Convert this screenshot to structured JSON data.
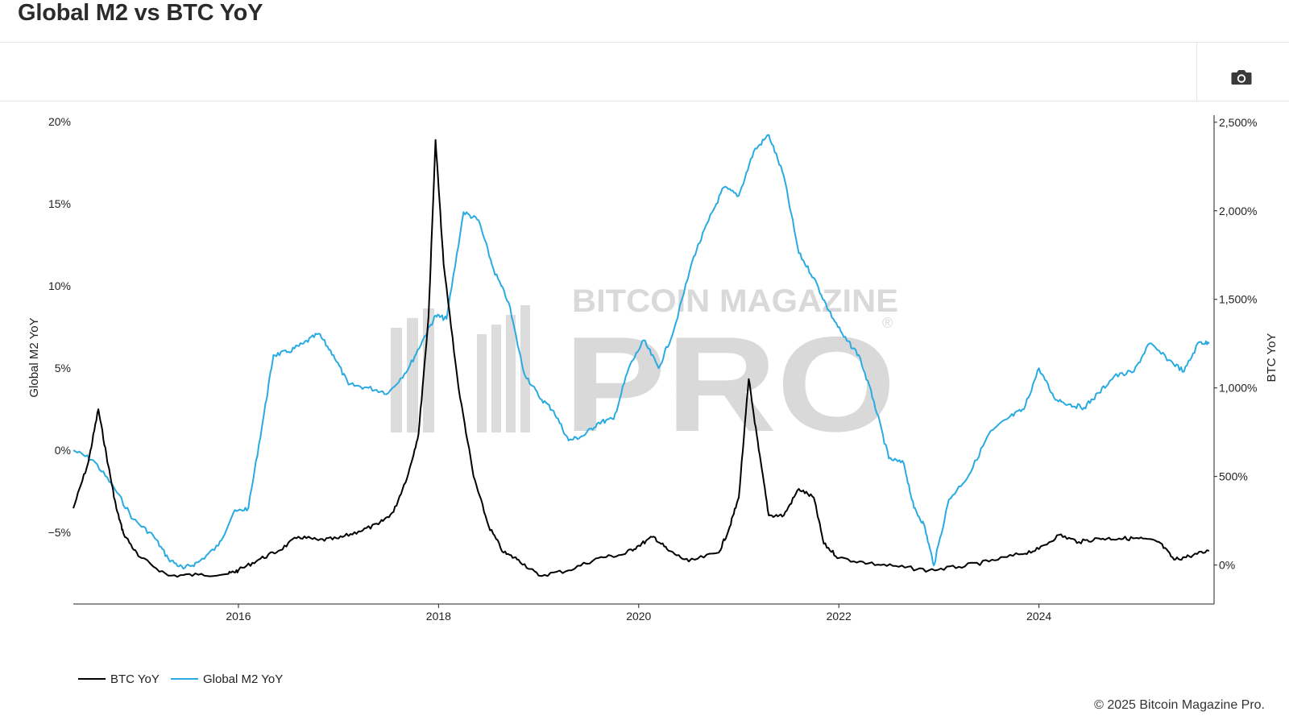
{
  "header": {
    "title": "Global M2 vs BTC YoY"
  },
  "toolbar": {
    "screenshot_icon": "camera-icon"
  },
  "watermark": {
    "line1": "BITCOIN MAGAZINE",
    "line2": "PRO",
    "mark": "®"
  },
  "footer": {
    "copyright": "© 2025 Bitcoin Magazine Pro."
  },
  "colors": {
    "btc": "#000000",
    "m2": "#29abe2",
    "axis": "#222222",
    "watermark": "#d9d9d9"
  },
  "chart_data": {
    "type": "line",
    "title": "",
    "xlim": [
      2014.35,
      2025.75
    ],
    "x_ticks": [
      2016,
      2018,
      2020,
      2022,
      2024
    ],
    "x_tick_labels": [
      "2016",
      "2018",
      "2020",
      "2022",
      "2024"
    ],
    "y_left": {
      "label": "Global M2 YoY",
      "lim": [
        -9.35,
        20.4
      ],
      "ticks": [
        20,
        15,
        10,
        5,
        0,
        -5
      ],
      "tick_labels": [
        "20%",
        "15%",
        "10%",
        "5%",
        "0%",
        "−5%"
      ]
    },
    "y_right": {
      "label": "BTC YoY",
      "lim": [
        -220,
        2540
      ],
      "ticks": [
        2500,
        2000,
        1500,
        1000,
        500,
        0
      ],
      "tick_labels": [
        "2,500%",
        "2,000%",
        "1,500%",
        "1,000%",
        "500%",
        "0%"
      ]
    },
    "grid": false,
    "legend_position": "bottom-left",
    "series": [
      {
        "name": "BTC YoY",
        "axis": "right",
        "color": "#000000",
        "x": [
          2014.35,
          2014.5,
          2014.6,
          2014.7,
          2014.78,
          2014.85,
          2015.0,
          2015.3,
          2015.6,
          2015.9,
          2016.0,
          2016.2,
          2016.4,
          2016.6,
          2016.8,
          2017.0,
          2017.2,
          2017.4,
          2017.55,
          2017.7,
          2017.8,
          2017.9,
          2017.97,
          2018.05,
          2018.2,
          2018.35,
          2018.5,
          2018.65,
          2018.8,
          2019.0,
          2019.3,
          2019.6,
          2019.85,
          2020.0,
          2020.15,
          2020.3,
          2020.5,
          2020.8,
          2020.9,
          2021.0,
          2021.1,
          2021.2,
          2021.3,
          2021.45,
          2021.6,
          2021.75,
          2021.85,
          2022.0,
          2022.3,
          2022.6,
          2022.9,
          2023.2,
          2023.5,
          2023.8,
          2024.0,
          2024.2,
          2024.4,
          2024.6,
          2024.8,
          2025.0,
          2025.2,
          2025.35,
          2025.5,
          2025.7
        ],
        "y": [
          320,
          580,
          880,
          560,
          320,
          180,
          50,
          -60,
          -55,
          -50,
          -30,
          30,
          80,
          160,
          140,
          150,
          190,
          230,
          300,
          520,
          740,
          1400,
          2400,
          1700,
          1000,
          500,
          220,
          70,
          30,
          -60,
          -30,
          40,
          60,
          110,
          160,
          80,
          20,
          70,
          200,
          380,
          1050,
          650,
          280,
          280,
          430,
          380,
          120,
          40,
          10,
          -10,
          -30,
          -10,
          20,
          60,
          90,
          170,
          130,
          150,
          150,
          150,
          130,
          30,
          50,
          80
        ]
      },
      {
        "name": "Global M2 YoY",
        "axis": "left",
        "color": "#29abe2",
        "x": [
          2014.35,
          2014.55,
          2014.75,
          2014.95,
          2015.15,
          2015.3,
          2015.45,
          2015.6,
          2015.8,
          2015.95,
          2016.1,
          2016.25,
          2016.35,
          2016.5,
          2016.65,
          2016.8,
          2016.95,
          2017.1,
          2017.3,
          2017.5,
          2017.7,
          2017.85,
          2017.97,
          2018.08,
          2018.25,
          2018.4,
          2018.55,
          2018.7,
          2018.85,
          2019.0,
          2019.15,
          2019.3,
          2019.45,
          2019.6,
          2019.75,
          2019.9,
          2020.05,
          2020.2,
          2020.35,
          2020.55,
          2020.7,
          2020.85,
          2021.0,
          2021.15,
          2021.3,
          2021.45,
          2021.6,
          2021.75,
          2021.9,
          2022.05,
          2022.2,
          2022.35,
          2022.5,
          2022.65,
          2022.75,
          2022.85,
          2022.95,
          2023.1,
          2023.3,
          2023.5,
          2023.7,
          2023.85,
          2024.0,
          2024.15,
          2024.3,
          2024.45,
          2024.6,
          2024.75,
          2024.95,
          2025.1,
          2025.3,
          2025.45,
          2025.6,
          2025.7
        ],
        "y": [
          0.0,
          -0.6,
          -2.2,
          -4.2,
          -5.2,
          -6.6,
          -7.2,
          -6.8,
          -5.8,
          -3.8,
          -3.5,
          2.0,
          5.8,
          6.0,
          6.5,
          7.1,
          5.8,
          4.0,
          3.8,
          3.5,
          5.0,
          6.8,
          8.2,
          8.0,
          14.5,
          14.0,
          11.0,
          9.0,
          4.8,
          3.3,
          2.4,
          0.6,
          0.9,
          1.7,
          1.9,
          5.0,
          6.7,
          5.0,
          7.3,
          11.8,
          14.0,
          16.0,
          15.5,
          18.2,
          19.2,
          16.7,
          12.0,
          10.5,
          8.5,
          6.9,
          5.8,
          3.0,
          -0.5,
          -0.8,
          -3.5,
          -4.5,
          -7.0,
          -3.0,
          -1.5,
          1.0,
          2.0,
          2.5,
          5.0,
          3.2,
          2.8,
          2.6,
          3.5,
          4.5,
          4.8,
          6.5,
          5.5,
          4.8,
          6.6,
          6.5
        ]
      }
    ]
  }
}
